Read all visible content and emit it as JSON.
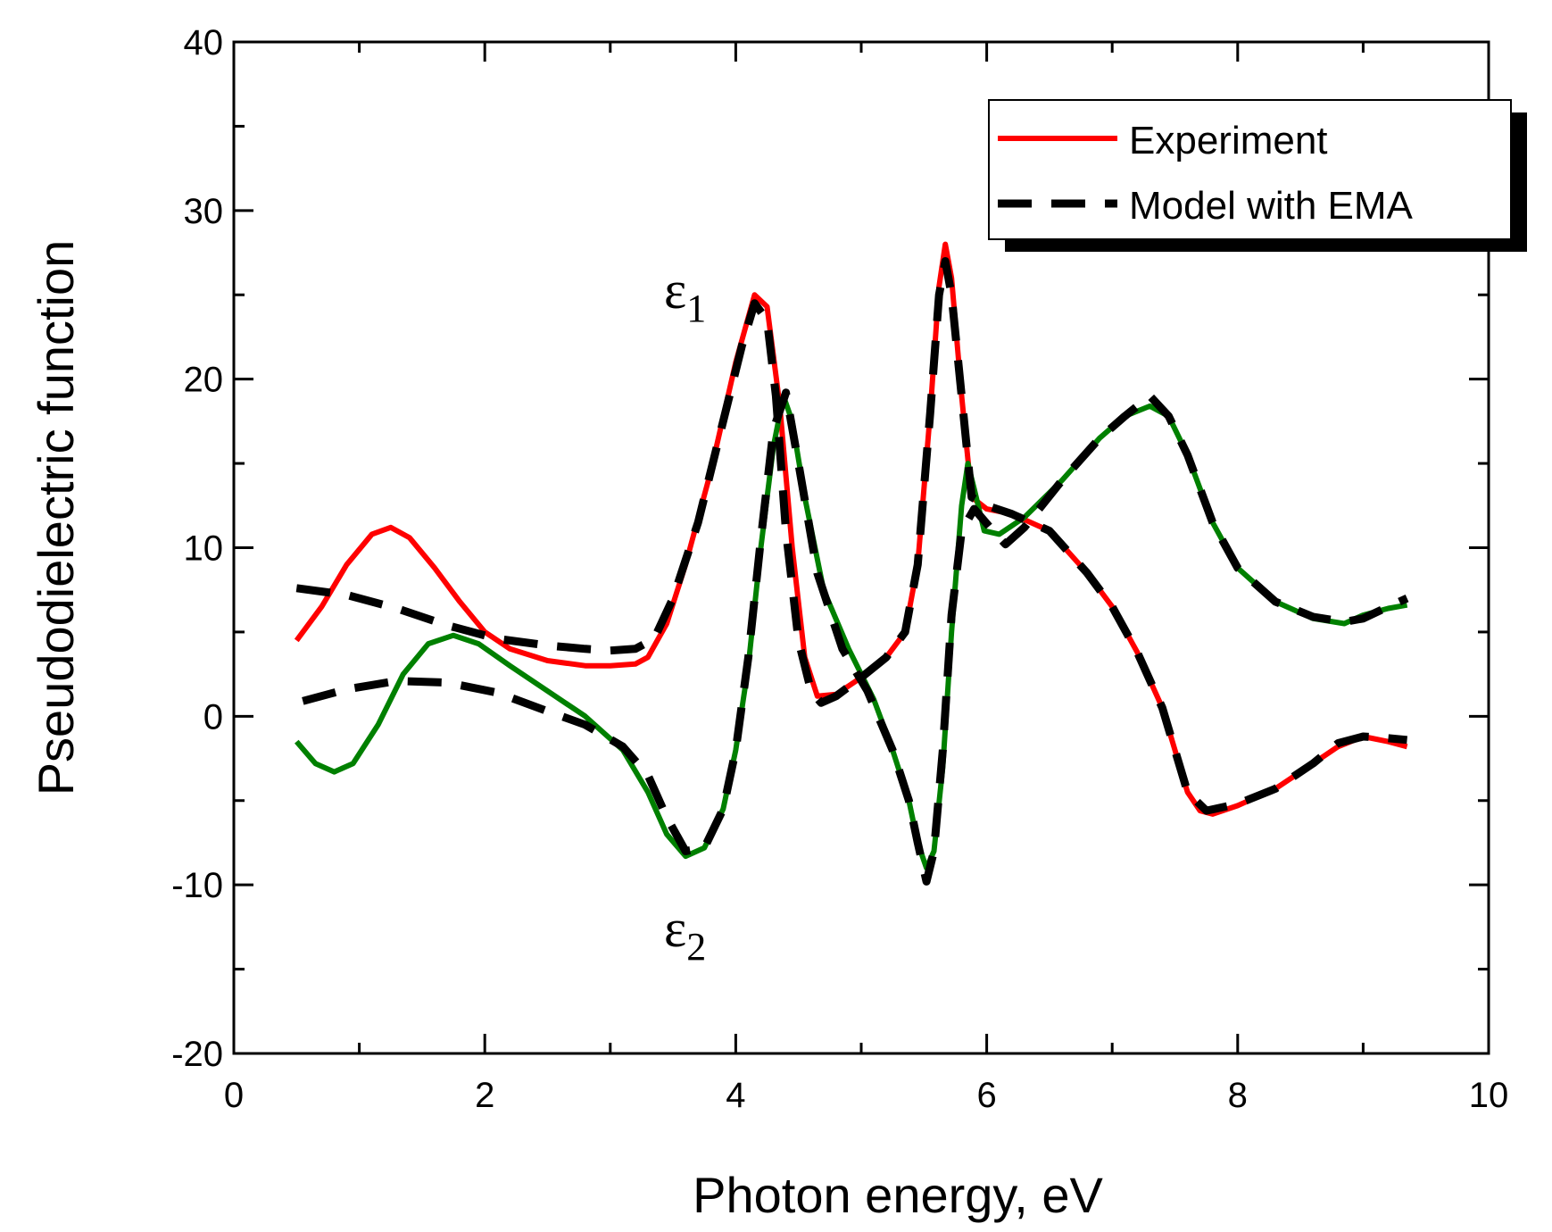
{
  "chart_data": {
    "type": "line",
    "xlabel": "Photon energy, eV",
    "ylabel": "Pseudodielectric function",
    "xlim": [
      0,
      10
    ],
    "ylim": [
      -20,
      40
    ],
    "xticks": [
      "0",
      "2",
      "4",
      "6",
      "8",
      "10"
    ],
    "yticks": [
      "-20",
      "-10",
      "0",
      "10",
      "20",
      "30",
      "40"
    ],
    "grid": false,
    "legend_position": "top-right",
    "legend": [
      {
        "label": "Experiment",
        "style": "solid",
        "color": "#ff0000"
      },
      {
        "label": "Model with EMA",
        "style": "dashed",
        "color": "#000000"
      }
    ],
    "annotations": [
      {
        "symbol": "ε",
        "subscript": "1",
        "x": 3.55,
        "y": 25.5
      },
      {
        "symbol": "ε",
        "subscript": "2",
        "x": 3.55,
        "y": -13.5
      }
    ],
    "series": [
      {
        "color": "#ff0000",
        "style": "solid",
        "points": [
          [
            0.5,
            4.5
          ],
          [
            0.7,
            6.5
          ],
          [
            0.9,
            9.0
          ],
          [
            1.1,
            10.8
          ],
          [
            1.25,
            11.2
          ],
          [
            1.4,
            10.6
          ],
          [
            1.6,
            8.8
          ],
          [
            1.8,
            6.8
          ],
          [
            2.0,
            5.0
          ],
          [
            2.2,
            4.0
          ],
          [
            2.5,
            3.3
          ],
          [
            2.8,
            3.0
          ],
          [
            3.0,
            3.0
          ],
          [
            3.2,
            3.1
          ],
          [
            3.3,
            3.5
          ],
          [
            3.45,
            5.5
          ],
          [
            3.6,
            9.0
          ],
          [
            3.8,
            14.5
          ],
          [
            4.0,
            21.0
          ],
          [
            4.15,
            25.0
          ],
          [
            4.25,
            24.3
          ],
          [
            4.35,
            18.5
          ],
          [
            4.45,
            10.0
          ],
          [
            4.55,
            3.5
          ],
          [
            4.65,
            1.2
          ],
          [
            4.8,
            1.3
          ],
          [
            5.0,
            2.3
          ],
          [
            5.2,
            3.5
          ],
          [
            5.35,
            5.0
          ],
          [
            5.45,
            9.0
          ],
          [
            5.55,
            18.0
          ],
          [
            5.62,
            25.5
          ],
          [
            5.67,
            28.0
          ],
          [
            5.72,
            26.0
          ],
          [
            5.8,
            19.0
          ],
          [
            5.88,
            13.0
          ],
          [
            6.0,
            12.3
          ],
          [
            6.2,
            12.0
          ],
          [
            6.5,
            11.0
          ],
          [
            6.8,
            8.5
          ],
          [
            7.0,
            6.5
          ],
          [
            7.2,
            3.8
          ],
          [
            7.4,
            0.5
          ],
          [
            7.5,
            -2.0
          ],
          [
            7.6,
            -4.5
          ],
          [
            7.7,
            -5.6
          ],
          [
            7.8,
            -5.8
          ],
          [
            8.0,
            -5.3
          ],
          [
            8.3,
            -4.3
          ],
          [
            8.6,
            -2.8
          ],
          [
            8.8,
            -1.8
          ],
          [
            9.0,
            -1.2
          ],
          [
            9.2,
            -1.5
          ],
          [
            9.35,
            -1.8
          ]
        ]
      },
      {
        "color": "#008000",
        "style": "solid",
        "points": [
          [
            0.5,
            -1.5
          ],
          [
            0.65,
            -2.8
          ],
          [
            0.8,
            -3.3
          ],
          [
            0.95,
            -2.8
          ],
          [
            1.15,
            -0.5
          ],
          [
            1.35,
            2.5
          ],
          [
            1.55,
            4.3
          ],
          [
            1.75,
            4.8
          ],
          [
            1.95,
            4.3
          ],
          [
            2.2,
            3.0
          ],
          [
            2.5,
            1.5
          ],
          [
            2.8,
            0.0
          ],
          [
            3.1,
            -2.0
          ],
          [
            3.3,
            -4.5
          ],
          [
            3.45,
            -7.0
          ],
          [
            3.6,
            -8.3
          ],
          [
            3.75,
            -7.8
          ],
          [
            3.9,
            -5.5
          ],
          [
            4.0,
            -2.0
          ],
          [
            4.1,
            3.0
          ],
          [
            4.2,
            10.0
          ],
          [
            4.3,
            16.0
          ],
          [
            4.38,
            19.0
          ],
          [
            4.45,
            17.5
          ],
          [
            4.55,
            13.0
          ],
          [
            4.7,
            7.5
          ],
          [
            4.9,
            4.0
          ],
          [
            5.1,
            1.0
          ],
          [
            5.25,
            -2.0
          ],
          [
            5.38,
            -5.0
          ],
          [
            5.45,
            -7.5
          ],
          [
            5.52,
            -9.0
          ],
          [
            5.58,
            -8.0
          ],
          [
            5.65,
            -3.0
          ],
          [
            5.72,
            5.0
          ],
          [
            5.8,
            12.5
          ],
          [
            5.85,
            15.0
          ],
          [
            5.9,
            13.5
          ],
          [
            5.98,
            11.0
          ],
          [
            6.1,
            10.8
          ],
          [
            6.3,
            11.8
          ],
          [
            6.6,
            14.0
          ],
          [
            6.9,
            16.5
          ],
          [
            7.1,
            17.8
          ],
          [
            7.3,
            18.4
          ],
          [
            7.45,
            17.8
          ],
          [
            7.6,
            15.5
          ],
          [
            7.8,
            11.5
          ],
          [
            8.0,
            8.8
          ],
          [
            8.3,
            6.8
          ],
          [
            8.6,
            5.8
          ],
          [
            8.85,
            5.5
          ],
          [
            9.0,
            6.0
          ],
          [
            9.2,
            6.4
          ],
          [
            9.35,
            6.6
          ]
        ]
      },
      {
        "color": "#000000",
        "style": "dashed",
        "points": [
          [
            0.5,
            7.6
          ],
          [
            0.9,
            7.2
          ],
          [
            1.3,
            6.4
          ],
          [
            1.7,
            5.4
          ],
          [
            2.1,
            4.6
          ],
          [
            2.5,
            4.2
          ],
          [
            2.8,
            4.0
          ],
          [
            3.0,
            3.9
          ],
          [
            3.2,
            4.0
          ],
          [
            3.35,
            4.6
          ],
          [
            3.5,
            7.0
          ],
          [
            3.7,
            11.5
          ],
          [
            3.9,
            17.5
          ],
          [
            4.05,
            22.0
          ],
          [
            4.15,
            24.5
          ],
          [
            4.25,
            23.5
          ],
          [
            4.32,
            19.0
          ],
          [
            4.4,
            11.0
          ],
          [
            4.5,
            4.5
          ],
          [
            4.6,
            1.5
          ],
          [
            4.68,
            0.8
          ],
          [
            4.8,
            1.2
          ],
          [
            5.0,
            2.3
          ],
          [
            5.2,
            3.5
          ],
          [
            5.35,
            5.0
          ],
          [
            5.45,
            9.0
          ],
          [
            5.55,
            18.0
          ],
          [
            5.62,
            25.0
          ],
          [
            5.67,
            27.0
          ],
          [
            5.72,
            25.0
          ],
          [
            5.8,
            19.0
          ],
          [
            5.88,
            13.0
          ],
          [
            6.0,
            12.5
          ],
          [
            6.2,
            12.0
          ],
          [
            6.5,
            11.0
          ],
          [
            6.8,
            8.5
          ],
          [
            7.0,
            6.5
          ],
          [
            7.2,
            3.8
          ],
          [
            7.4,
            0.5
          ],
          [
            7.5,
            -2.0
          ],
          [
            7.6,
            -4.5
          ],
          [
            7.75,
            -5.6
          ],
          [
            8.0,
            -5.2
          ],
          [
            8.3,
            -4.3
          ],
          [
            8.6,
            -2.8
          ],
          [
            8.8,
            -1.6
          ],
          [
            9.0,
            -1.2
          ],
          [
            9.2,
            -1.3
          ],
          [
            9.35,
            -1.4
          ]
        ]
      },
      {
        "color": "#000000",
        "style": "dashed",
        "points": [
          [
            0.55,
            0.9
          ],
          [
            0.9,
            1.6
          ],
          [
            1.3,
            2.1
          ],
          [
            1.7,
            2.0
          ],
          [
            2.1,
            1.4
          ],
          [
            2.5,
            0.3
          ],
          [
            2.8,
            -0.5
          ],
          [
            3.1,
            -1.8
          ],
          [
            3.3,
            -3.5
          ],
          [
            3.45,
            -6.0
          ],
          [
            3.6,
            -8.0
          ],
          [
            3.75,
            -7.8
          ],
          [
            3.9,
            -5.5
          ],
          [
            4.0,
            -2.0
          ],
          [
            4.1,
            3.5
          ],
          [
            4.2,
            10.5
          ],
          [
            4.3,
            17.0
          ],
          [
            4.4,
            19.2
          ],
          [
            4.5,
            15.0
          ],
          [
            4.65,
            8.5
          ],
          [
            4.85,
            4.0
          ],
          [
            5.05,
            1.5
          ],
          [
            5.25,
            -2.0
          ],
          [
            5.38,
            -5.0
          ],
          [
            5.45,
            -7.5
          ],
          [
            5.52,
            -9.8
          ],
          [
            5.58,
            -8.0
          ],
          [
            5.65,
            -2.0
          ],
          [
            5.72,
            6.0
          ],
          [
            5.8,
            11.0
          ],
          [
            5.9,
            12.3
          ],
          [
            6.05,
            11.0
          ],
          [
            6.15,
            10.2
          ],
          [
            6.3,
            11.2
          ],
          [
            6.6,
            14.0
          ],
          [
            6.9,
            16.5
          ],
          [
            7.1,
            17.8
          ],
          [
            7.3,
            19.0
          ],
          [
            7.45,
            17.8
          ],
          [
            7.6,
            15.5
          ],
          [
            7.8,
            11.5
          ],
          [
            8.0,
            8.8
          ],
          [
            8.3,
            6.8
          ],
          [
            8.6,
            5.9
          ],
          [
            8.85,
            5.6
          ],
          [
            9.0,
            5.8
          ],
          [
            9.2,
            6.5
          ],
          [
            9.35,
            7.0
          ]
        ]
      }
    ]
  }
}
